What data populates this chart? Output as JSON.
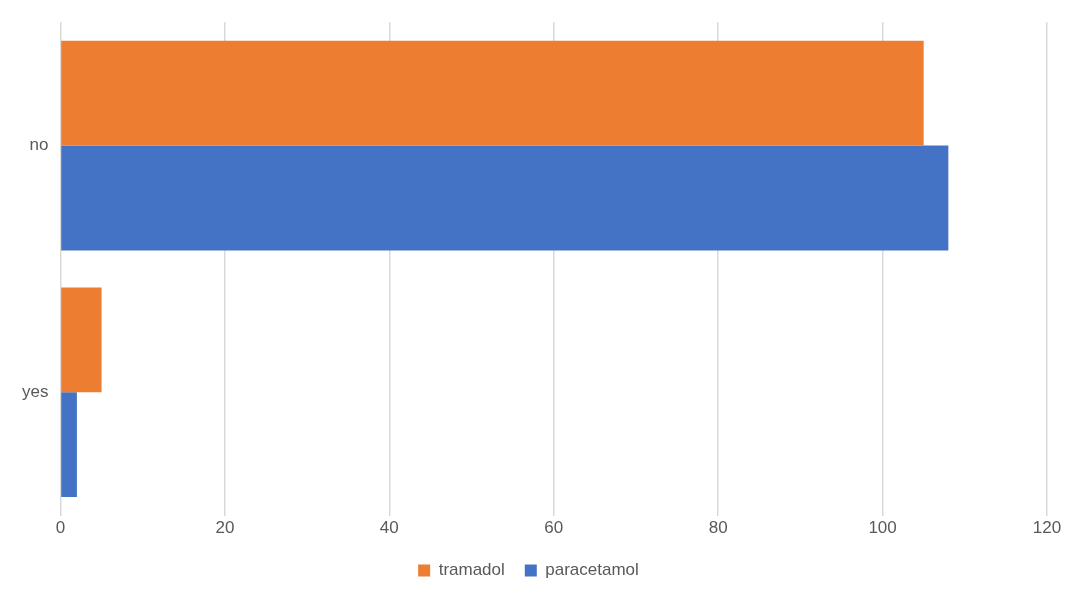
{
  "chart_data": {
    "type": "bar",
    "orientation": "horizontal",
    "categories": [
      "no",
      "yes"
    ],
    "series": [
      {
        "name": "tramadol",
        "color": "#ed7d31",
        "values": [
          105,
          5
        ]
      },
      {
        "name": "paracetamol",
        "color": "#4472c4",
        "values": [
          108,
          2
        ]
      }
    ],
    "xlim": [
      0,
      120
    ],
    "xticks": [
      0,
      20,
      40,
      60,
      80,
      100,
      120
    ],
    "grid": "x",
    "legend": "bottom"
  }
}
